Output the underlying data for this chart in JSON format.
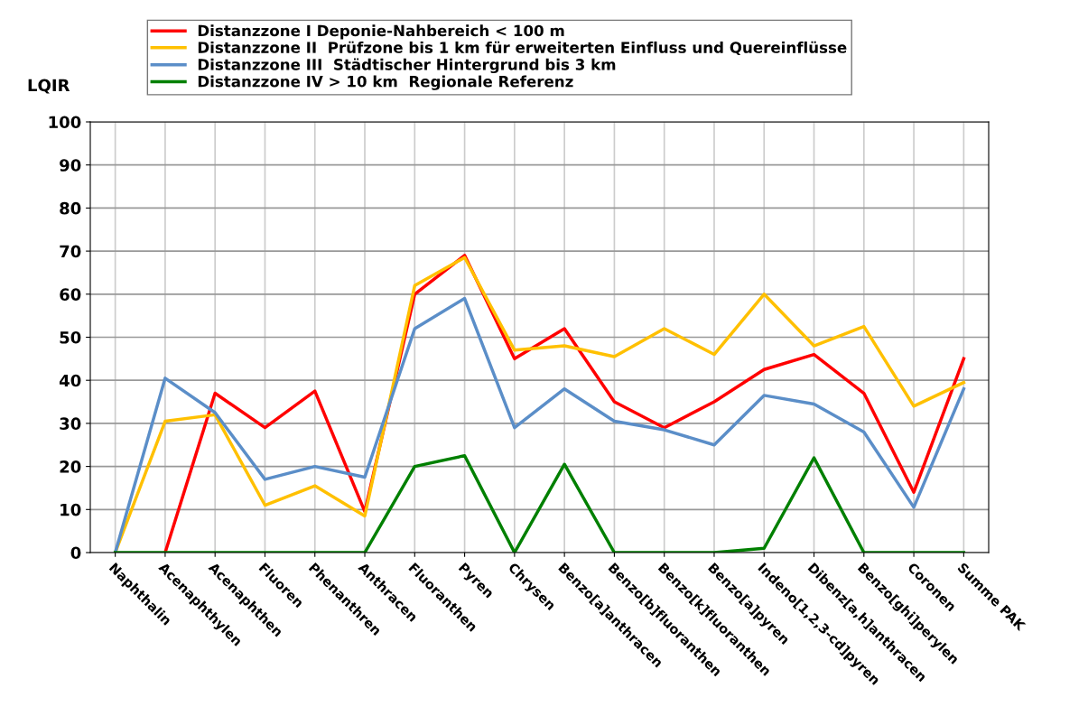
{
  "chart_data": {
    "type": "line",
    "ylabel": "LQIR",
    "categories": [
      "Naphthalin",
      "Acenaphthylen",
      "Acenaphthen",
      "Fluoren",
      "Phenanthren",
      "Anthracen",
      "Fluoranthen",
      "Pyren",
      "Chrysen",
      "Benzo[a]anthracen",
      "Benzo[b]fluoranthen",
      "Benzo[k]fluoranthen",
      "Benzo[a]pyren",
      "Indeno[1,2,3-cd]pyren",
      "Dibenz[a,h]anthracen",
      "Benzo[ghi]perylen",
      "Coronen",
      "Summe PAK"
    ],
    "series": [
      {
        "name": "Distanzzone I Deponie-Nahbereich < 100 m",
        "color": "#ff0000",
        "values": [
          null,
          0,
          37,
          29,
          37.5,
          9.5,
          60,
          69,
          45,
          52,
          35,
          29,
          35,
          42.5,
          46,
          37,
          14,
          45
        ]
      },
      {
        "name": "Distanzzone II  Prüfzone bis 1 km für erweiterten Einfluss und Quereinflüsse",
        "color": "#ffc000",
        "values": [
          0,
          30.5,
          32,
          11,
          15.5,
          8.5,
          62,
          68.5,
          47,
          48,
          45.5,
          52,
          46,
          60,
          48,
          52.5,
          34,
          39.5
        ]
      },
      {
        "name": "Distanzzone III  Städtischer Hintergrund bis 3 km",
        "color": "#5b8ec8",
        "values": [
          0,
          40.5,
          32.5,
          17,
          20,
          17.5,
          52,
          59,
          29,
          38,
          30.5,
          28.5,
          25,
          36.5,
          34.5,
          28,
          10.5,
          38
        ]
      },
      {
        "name": "Distanzzone IV > 10 km  Regionale Referenz",
        "color": "#008000",
        "values": [
          0,
          0,
          0,
          0,
          0,
          0,
          20,
          22.5,
          0,
          20.5,
          0,
          0,
          0,
          1,
          22,
          0,
          0,
          0
        ]
      }
    ],
    "ylim": [
      0,
      100
    ],
    "yticks": [
      0,
      10,
      20,
      30,
      40,
      50,
      60,
      70,
      80,
      90,
      100
    ],
    "grid": true,
    "legend": "top",
    "marker": "none",
    "line_style": "solid"
  }
}
